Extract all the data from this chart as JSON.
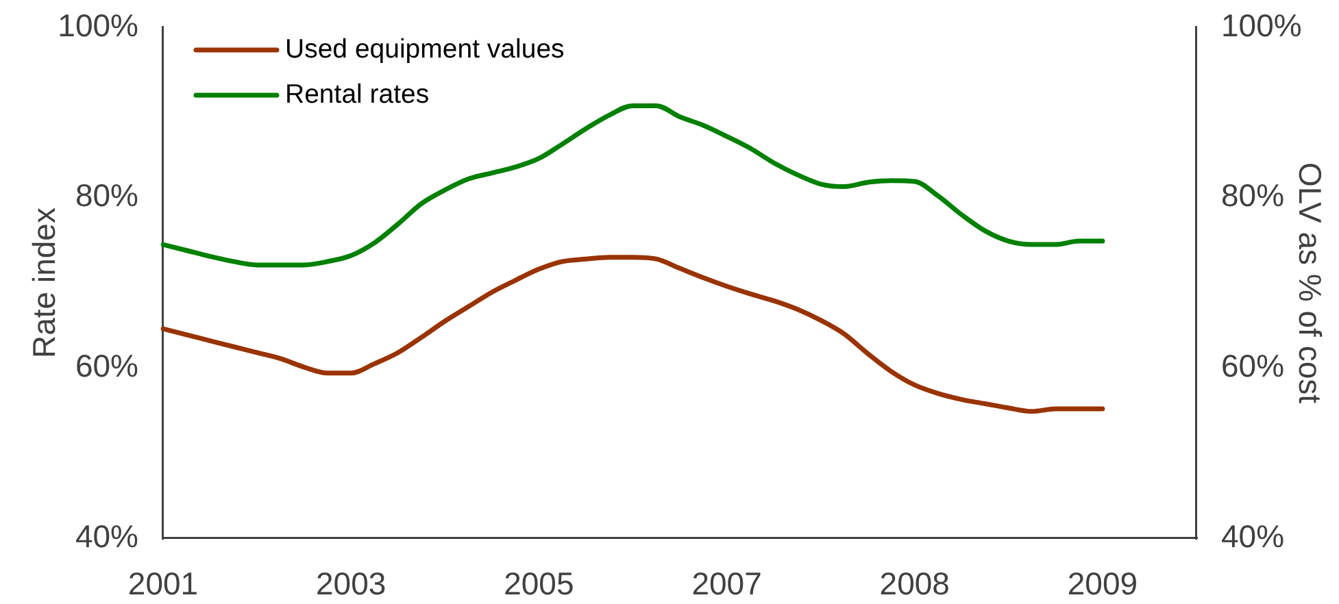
{
  "chart_data": {
    "type": "line",
    "ylabel": "Rate index",
    "y2label": "OLV as % of cost",
    "categories": [
      "2001",
      null,
      null,
      null,
      null,
      null,
      null,
      null,
      "2003",
      null,
      null,
      null,
      null,
      null,
      null,
      null,
      "2005",
      null,
      null,
      null,
      null,
      null,
      null,
      null,
      "2007",
      null,
      null,
      null,
      null,
      null,
      null,
      null,
      "2008",
      null,
      null,
      null,
      null,
      null,
      null,
      null,
      "2009",
      null,
      null,
      null,
      null
    ],
    "series": [
      {
        "name": "Used equipment values",
        "color": "#993300",
        "values": [
          64.6,
          63.9,
          63.2,
          62.5,
          61.8,
          61.1,
          60.1,
          59.4,
          59.4,
          60.5,
          61.8,
          63.6,
          65.5,
          67.2,
          68.9,
          70.3,
          71.6,
          72.5,
          72.8,
          73.0,
          73.0,
          72.8,
          71.7,
          70.6,
          69.6,
          68.7,
          67.9,
          66.9,
          65.6,
          64.0,
          61.7,
          59.6,
          58.0,
          57.0,
          56.3,
          55.8,
          55.3,
          54.9,
          55.2,
          55.2,
          55.2,
          null,
          null,
          null,
          null
        ]
      },
      {
        "name": "Rental rates",
        "color": "#008000",
        "values": [
          74.5,
          73.8,
          73.1,
          72.5,
          72.1,
          72.1,
          72.1,
          72.5,
          73.2,
          74.7,
          76.9,
          79.3,
          80.9,
          82.2,
          82.9,
          83.6,
          84.6,
          86.3,
          88.1,
          89.7,
          90.8,
          90.8,
          89.5,
          88.5,
          87.2,
          85.8,
          84.1,
          82.7,
          81.6,
          81.3,
          81.8,
          82.0,
          81.9,
          80.2,
          78.0,
          76.1,
          74.9,
          74.5,
          74.5,
          74.9,
          74.9,
          null,
          null,
          null,
          null
        ]
      }
    ],
    "ylim": [
      40,
      100
    ],
    "yticks": [
      {
        "value": 40,
        "label": "40%"
      },
      {
        "value": 60,
        "label": "60%"
      },
      {
        "value": 80,
        "label": "80%"
      },
      {
        "value": 100,
        "label": "100%"
      }
    ],
    "y2lim": [
      40,
      100
    ],
    "y2ticks": [
      {
        "value": 40,
        "label": "40%"
      },
      {
        "value": 60,
        "label": "60%"
      },
      {
        "value": 80,
        "label": "80%"
      },
      {
        "value": 100,
        "label": "100%"
      }
    ],
    "legend": "top left",
    "grid": false,
    "marker": "none",
    "line_style": "solid"
  }
}
